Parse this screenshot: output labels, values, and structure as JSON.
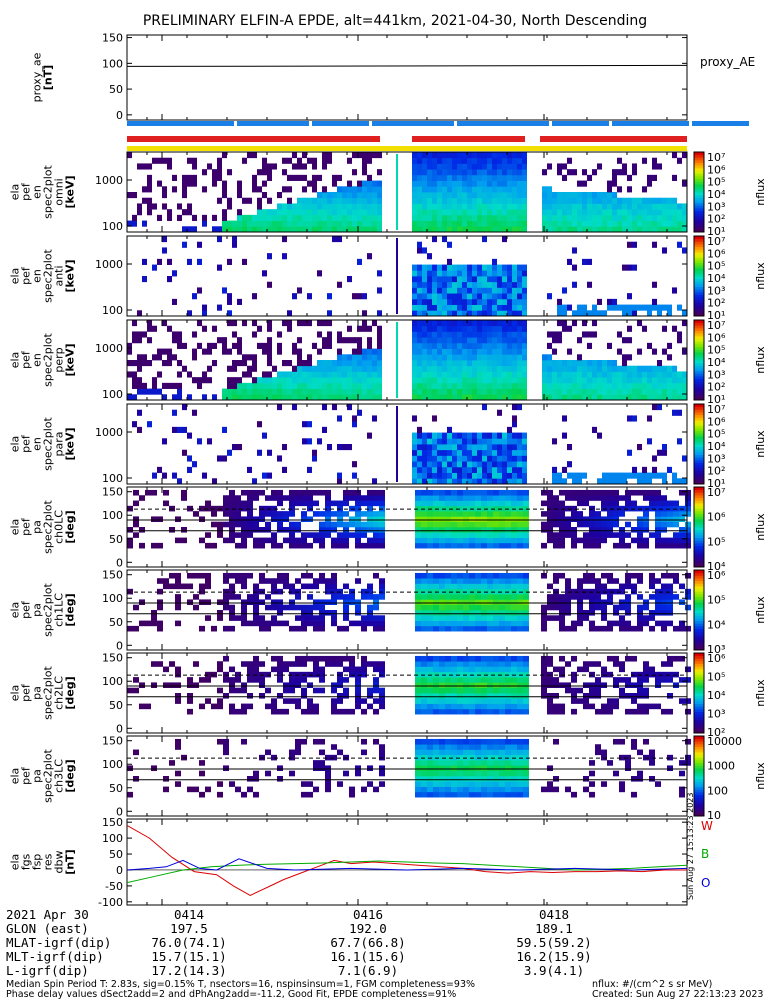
{
  "title": "PRELIMINARY ELFIN-A EPDE, alt=441km, 2021-04-30, North Descending",
  "vertical_stamp": "Sun Aug 27 15:13:23 2023",
  "time_info": {
    "date": "2021 Apr 30",
    "tick_labels": [
      "0414",
      "0416",
      "0418"
    ],
    "rows": [
      {
        "label": "GLON (east)",
        "values": [
          "197.5",
          "192.0",
          "189.1"
        ]
      },
      {
        "label": "MLAT-igrf(dip)",
        "values": [
          "76.0(74.1)",
          "67.7(66.8)",
          "59.5(59.2)"
        ]
      },
      {
        "label": "MLT-igrf(dip)",
        "values": [
          "15.7(15.1)",
          "16.1(15.6)",
          "16.2(15.9)"
        ]
      },
      {
        "label": "L-igrf(dip)",
        "values": [
          "17.2(14.3)",
          "7.1(6.9)",
          "3.9(4.1)"
        ]
      }
    ]
  },
  "footer": {
    "line1": "Median Spin Period T: 2.83s, sig=0.15% T, nsectors=16, nspinsinsum=1, FGM completeness=93%",
    "line2": "Phase delay values dSect2add=2 and dPhAng2add=-11.2, Good Fit, EPDE completeness=91%",
    "units": "nflux: #/(cm^2 s sr MeV)",
    "created": "Created: Sun Aug 27 22:13:23 2023"
  },
  "colors": {
    "blue_bar": "#1a7fe6",
    "red_bar": "#e02020",
    "yellow_bar": "#f2e000",
    "dbw": {
      "W": "#dd0000",
      "B": "#00aa00",
      "O": "#0000dd"
    }
  },
  "chart_data": [
    {
      "type": "line",
      "panel": "proxy_AE",
      "ylabel": [
        "proxy_ae",
        "[nT]"
      ],
      "ylim": [
        -10,
        155
      ],
      "yticks": [
        "0",
        "50",
        "100",
        "150"
      ],
      "legend": "proxy_AE",
      "series": [
        {
          "name": "proxy_AE",
          "x": [
            0,
            1
          ],
          "values": [
            94,
            96
          ]
        }
      ]
    },
    {
      "type": "heatmap",
      "panel": "ela pef en spec2plot omni",
      "ylabel": [
        "ela",
        "pef",
        "en",
        "spec2plot",
        "omni",
        "[keV]"
      ],
      "yticks": [
        "100",
        "1000"
      ],
      "cbar_labels": [
        "10¹",
        "10²",
        "10³",
        "10⁴",
        "10⁵",
        "10⁶",
        "10⁷"
      ],
      "cbar_title": "nflux"
    },
    {
      "type": "heatmap",
      "panel": "ela pef en spec2plot anti",
      "ylabel": [
        "ela",
        "pef",
        "en",
        "spec2plot",
        "anti",
        "[keV]"
      ],
      "yticks": [
        "100",
        "1000"
      ],
      "cbar_labels": [
        "10¹",
        "10²",
        "10³",
        "10⁴",
        "10⁵",
        "10⁶",
        "10⁷"
      ],
      "cbar_title": "nflux"
    },
    {
      "type": "heatmap",
      "panel": "ela pef en spec2plot perp",
      "ylabel": [
        "ela",
        "pef",
        "en",
        "spec2plot",
        "perp",
        "[keV]"
      ],
      "yticks": [
        "100",
        "1000"
      ],
      "cbar_labels": [
        "10¹",
        "10²",
        "10³",
        "10⁴",
        "10⁵",
        "10⁶",
        "10⁷"
      ],
      "cbar_title": "nflux"
    },
    {
      "type": "heatmap",
      "panel": "ela pef en spec2plot para",
      "ylabel": [
        "ela",
        "pef",
        "en",
        "spec2plot",
        "para",
        "[keV]"
      ],
      "yticks": [
        "100",
        "1000"
      ],
      "cbar_labels": [
        "10¹",
        "10²",
        "10³",
        "10⁴",
        "10⁵",
        "10⁶",
        "10⁷"
      ],
      "cbar_title": "nflux"
    },
    {
      "type": "heatmap",
      "panel": "ela pef pa spec2plot ch0LC",
      "ylabel": [
        "ela",
        "pef",
        "pa",
        "spec2plot",
        "ch0LC",
        "[deg]"
      ],
      "yticks": [
        "0",
        "50",
        "100",
        "150"
      ],
      "cbar_labels": [
        "10⁴",
        "10⁵",
        "10⁶",
        "10⁷"
      ],
      "cbar_title": "nflux"
    },
    {
      "type": "heatmap",
      "panel": "ela pef pa spec2plot ch1LC",
      "ylabel": [
        "ela",
        "pef",
        "pa",
        "spec2plot",
        "ch1LC",
        "[deg]"
      ],
      "yticks": [
        "0",
        "50",
        "100",
        "150"
      ],
      "cbar_labels": [
        "10³",
        "10⁴",
        "10⁵",
        "10⁶"
      ],
      "cbar_title": "nflux"
    },
    {
      "type": "heatmap",
      "panel": "ela pef pa spec2plot ch2LC",
      "ylabel": [
        "ela",
        "pef",
        "pa",
        "spec2plot",
        "ch2LC",
        "[deg]"
      ],
      "yticks": [
        "0",
        "50",
        "100",
        "150"
      ],
      "cbar_labels": [
        "10²",
        "10³",
        "10⁴",
        "10⁵",
        "10⁶"
      ],
      "cbar_title": "nflux"
    },
    {
      "type": "heatmap",
      "panel": "ela pef pa spec2plot ch3LC",
      "ylabel": [
        "ela",
        "pef",
        "pa",
        "spec2plot",
        "ch3LC",
        "[deg]"
      ],
      "yticks": [
        "0",
        "50",
        "100",
        "150"
      ],
      "cbar_labels": [
        "10",
        "100",
        "1000",
        "10000"
      ],
      "cbar_title": "nflux"
    },
    {
      "type": "line",
      "panel": "ela fgs fsp res dbw",
      "ylabel": [
        "ela",
        "fgs",
        "fsp",
        "res",
        "dbw",
        "[nT]"
      ],
      "ylim": [
        -110,
        160
      ],
      "yticks": [
        "-100",
        "-50",
        "0",
        "50",
        "100",
        "150"
      ],
      "series": [
        {
          "name": "W",
          "x": [
            0,
            0.04,
            0.08,
            0.12,
            0.16,
            0.19,
            0.22,
            0.25,
            0.28,
            0.31,
            0.34,
            0.37,
            0.4,
            0.44,
            0.48,
            0.52,
            0.56,
            0.6,
            0.64,
            0.68,
            0.72,
            0.76,
            0.8,
            0.84,
            0.88,
            0.92,
            0.96,
            1.0
          ],
          "values": [
            140,
            100,
            40,
            -5,
            -15,
            -50,
            -80,
            -55,
            -30,
            -10,
            10,
            30,
            20,
            25,
            20,
            15,
            10,
            5,
            -5,
            -10,
            -5,
            -8,
            -5,
            -5,
            -3,
            -5,
            0,
            0
          ]
        },
        {
          "name": "B",
          "x": [
            0,
            0.05,
            0.1,
            0.15,
            0.2,
            0.25,
            0.3,
            0.35,
            0.4,
            0.45,
            0.5,
            0.55,
            0.6,
            0.65,
            0.7,
            0.75,
            0.8,
            0.85,
            0.9,
            0.95,
            1.0
          ],
          "values": [
            -40,
            -20,
            0,
            10,
            15,
            18,
            20,
            22,
            25,
            28,
            25,
            22,
            20,
            15,
            10,
            5,
            0,
            2,
            5,
            10,
            15
          ]
        },
        {
          "name": "O",
          "x": [
            0,
            0.04,
            0.07,
            0.1,
            0.13,
            0.16,
            0.2,
            0.25,
            0.3,
            0.4,
            0.5,
            0.6,
            0.7,
            0.8,
            0.9,
            1.0
          ],
          "values": [
            0,
            5,
            10,
            30,
            5,
            0,
            35,
            5,
            0,
            5,
            0,
            5,
            0,
            5,
            0,
            5
          ]
        }
      ],
      "legend": [
        "W",
        "B",
        "O"
      ]
    }
  ]
}
